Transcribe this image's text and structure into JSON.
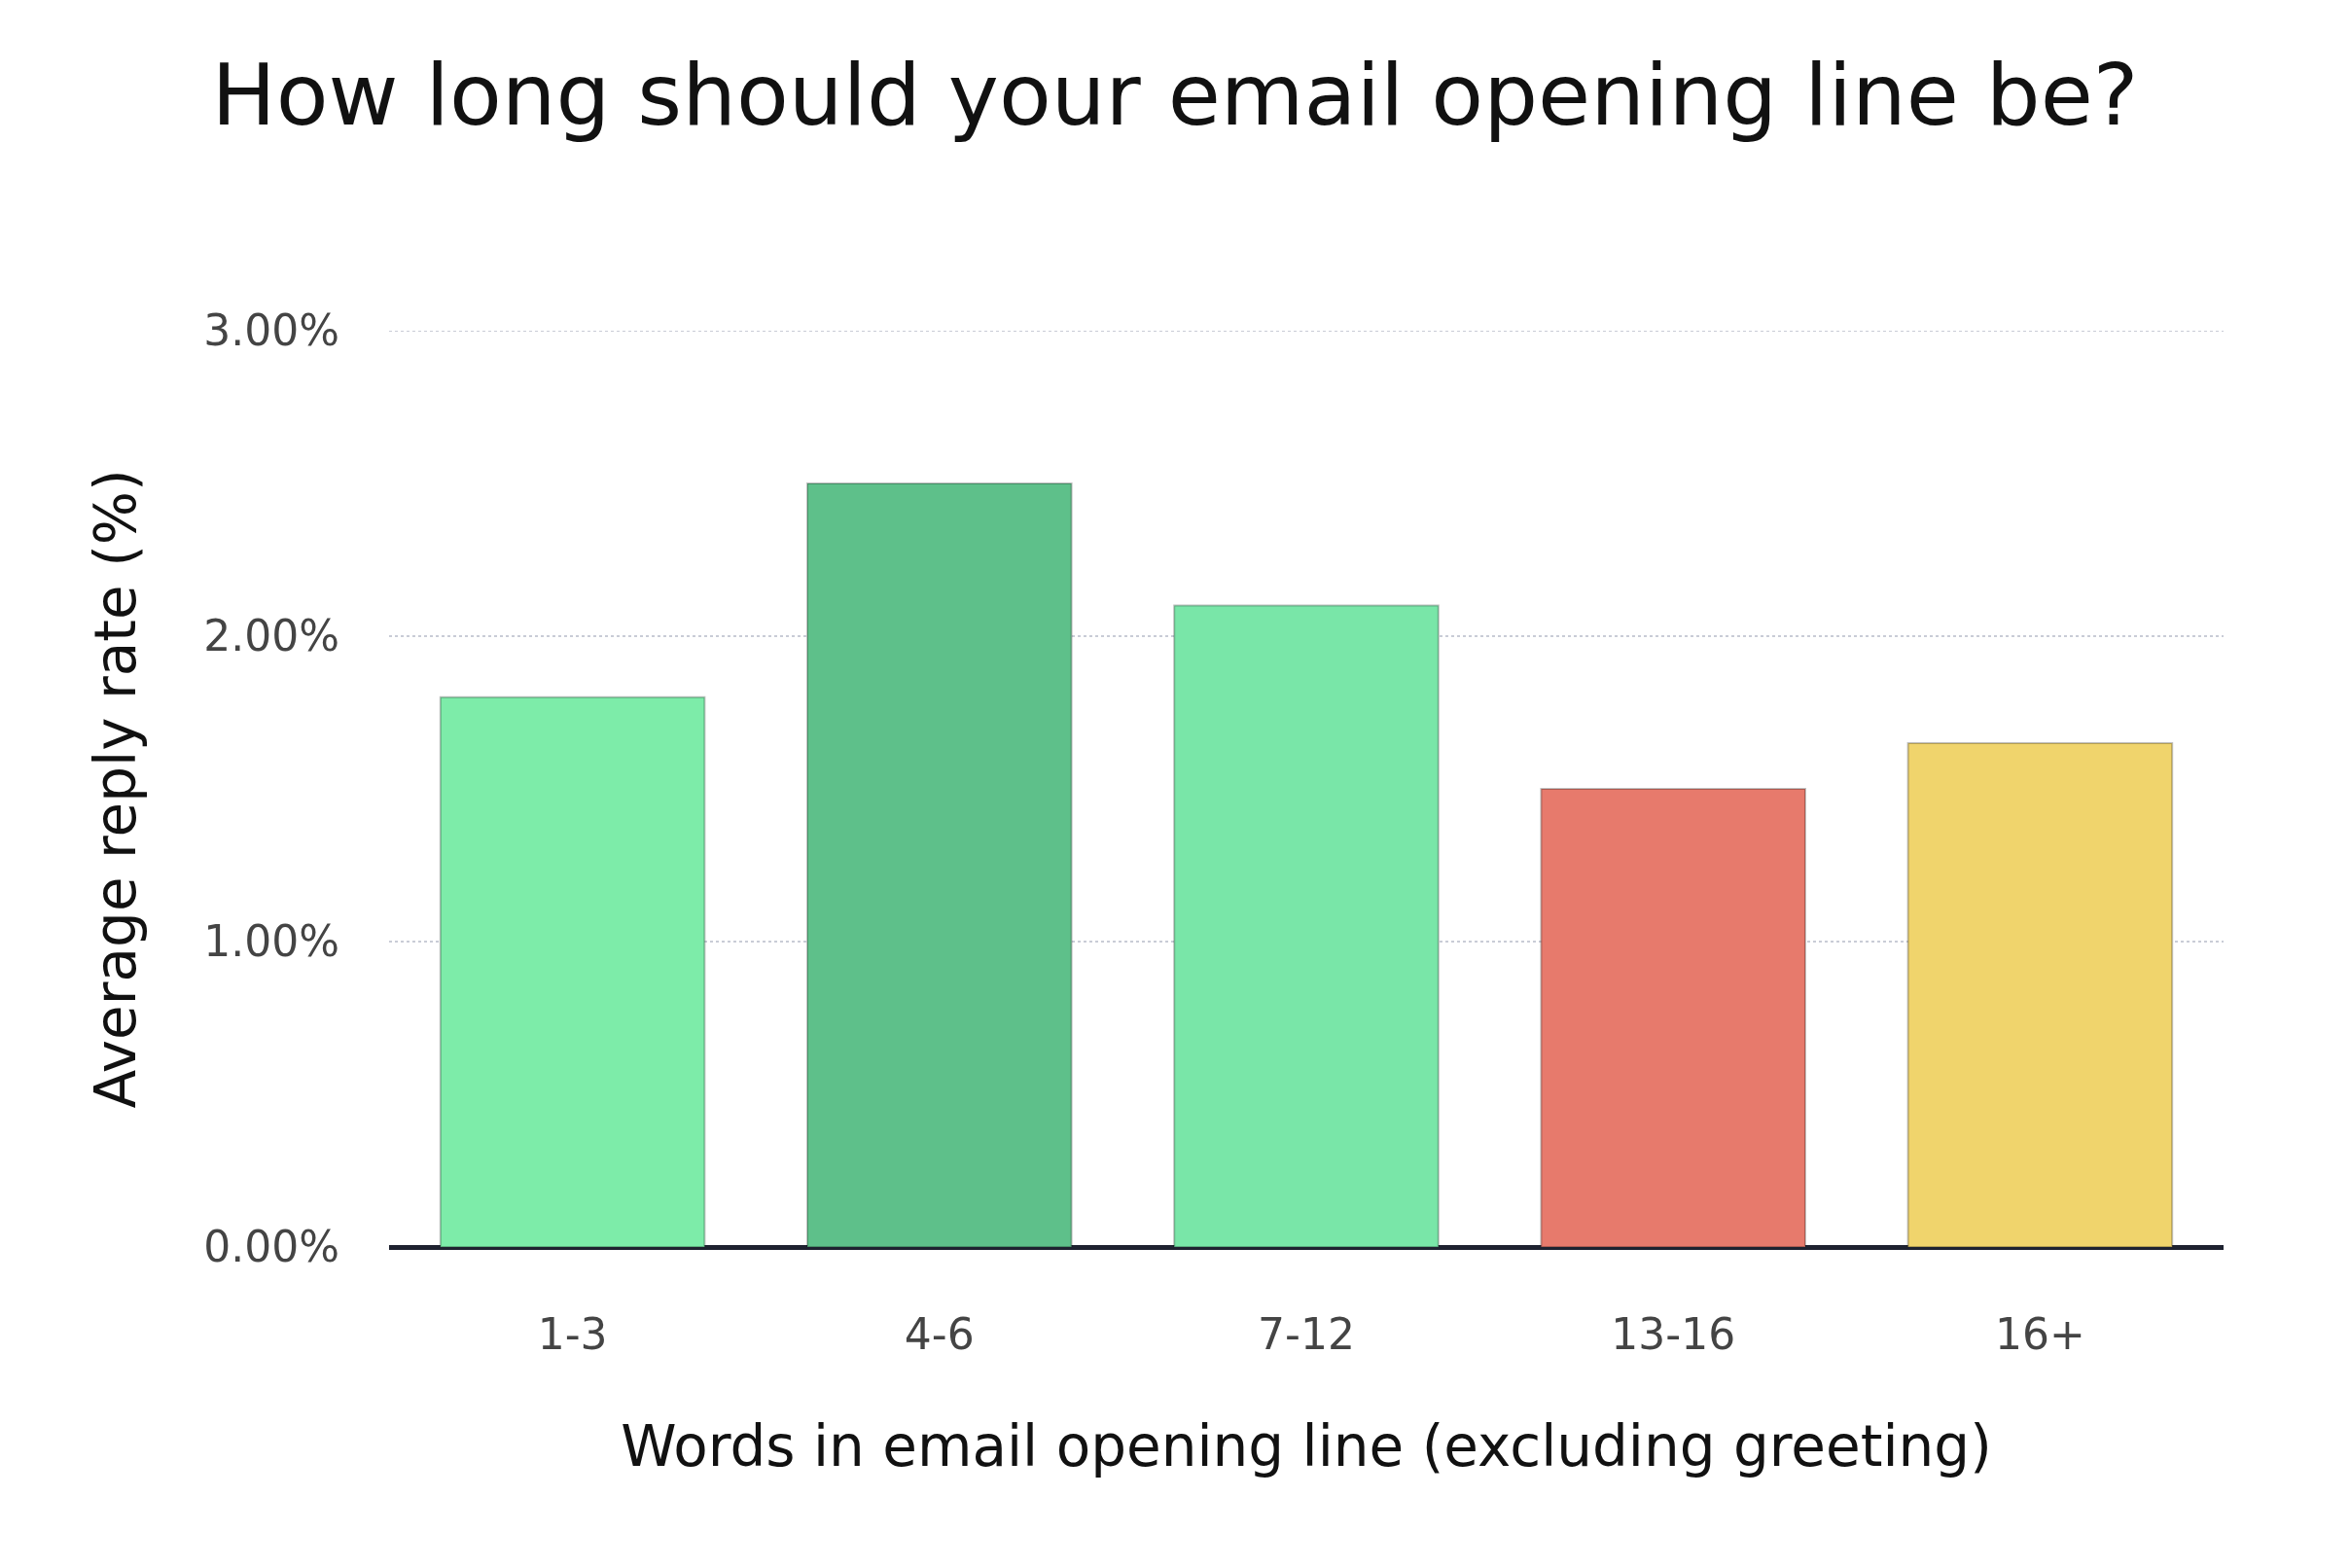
{
  "chart_data": {
    "type": "bar",
    "title": "How long should your email opening line be?",
    "xlabel": "Words in email opening line (excluding greeting)",
    "ylabel": "Average reply rate (%)",
    "categories": [
      "1-3",
      "4-6",
      "7-12",
      "13-16",
      "16+"
    ],
    "values": [
      1.8,
      2.5,
      2.1,
      1.5,
      1.65
    ],
    "colors": [
      "#7deca9",
      "#5ec08a",
      "#79e6a8",
      "#e77a6c",
      "#f0d46c"
    ],
    "ylim": [
      0,
      3
    ],
    "yticks": [
      {
        "value": 0,
        "label": "0.00%"
      },
      {
        "value": 1,
        "label": "1.00%"
      },
      {
        "value": 2,
        "label": "2.00%"
      },
      {
        "value": 3,
        "label": "3.00%"
      }
    ],
    "grid": "y"
  }
}
